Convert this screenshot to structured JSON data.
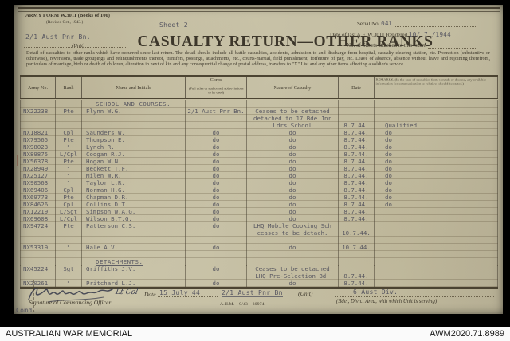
{
  "form": {
    "form_number": "ARMY FORM W.3011 (Books of 100)",
    "revised": "(Revised Oct., 1943.)",
    "sheet": "Sheet 2",
    "unit_value": "2/1 Aust Pnr Bn.",
    "unit_label": "(Unit)",
    "title": "CASUALTY RETURN—OTHER RANKS",
    "serial_label": "Serial No.",
    "serial_value": "041",
    "date_last_label": "Date of last A.F. W.3011 Rendered",
    "date_last_value": "10/ 7 /1944",
    "sheets_label": "No. of Sheets attached to this return",
    "intro": "Detail of casualties to other ranks which have occurred since last return.  The detail should include all battle casualties, accidents, admission to and discharge from hospital, casualty clearing station, etc.  Promotion (substantive or otherwise), reversions, trade groupings and relinquishments thereof, transfers, postings, attachments, etc., courts-martial, field punishment, forfeiture of pay, etc.  Leave of absence, absence without leave and rejoining therefrom, particulars of marriage, birth or death of children, alteration in next of kin and any consequential change of postal address, transfers to \"X\" List and any other items affecting a soldier's service."
  },
  "table": {
    "headers": {
      "army_no": "Army No.",
      "rank": "Rank",
      "name": "Name and Initials",
      "corps_line1": "Corps",
      "corps_line2": "(Full titles or authorised abbreviations to be used)",
      "nature": "Nature of Casualty",
      "date": "Date",
      "remarks": "REMARKS.  (In the case of casualties from wounds or disease, any available information for communication to relatives should be stated.)"
    },
    "rows": [
      {
        "type": "section",
        "label": "SCHOOL AND COURSES."
      },
      {
        "type": "entry",
        "army_no": "NX22238",
        "rank": "Pte",
        "name": "Flynn W.G.",
        "corps": "2/1 Aust Pnr Bn.",
        "nature": [
          "Ceases to be detached",
          "detached to 17 Bde Jnr",
          "Ldrs School"
        ],
        "date": "8.7.44.",
        "remarks": "Qualified"
      },
      {
        "type": "entry",
        "army_no": "NX18821",
        "rank": "Cpl",
        "name": "Saunders W.",
        "corps": "do",
        "nature": [
          "do"
        ],
        "date": "8.7.44.",
        "remarks": "do"
      },
      {
        "type": "entry",
        "army_no": "NX79565",
        "rank": "Pte",
        "name": "Thompson E.",
        "corps": "do",
        "nature": [
          "do"
        ],
        "date": "8.7.44.",
        "remarks": "do"
      },
      {
        "type": "entry",
        "army_no": "NX98023",
        "rank": "\"",
        "name": "Lynch R.",
        "corps": "do",
        "nature": [
          "do"
        ],
        "date": "8.7.44.",
        "remarks": "do"
      },
      {
        "type": "entry",
        "army_no": "NX89875",
        "rank": "L/Cpl",
        "name": "Coogan R.J.",
        "corps": "do",
        "nature": [
          "do"
        ],
        "date": "8.7.44.",
        "remarks": "do"
      },
      {
        "type": "entry",
        "army_no": "NX56378",
        "rank": "Pte",
        "name": "Hogan W.N.",
        "corps": "do",
        "nature": [
          "do"
        ],
        "date": "8.7.44.",
        "remarks": "do"
      },
      {
        "type": "entry",
        "army_no": "NX28949",
        "rank": "\"",
        "name": "Beckett T.F.",
        "corps": "do",
        "nature": [
          "do"
        ],
        "date": "8.7.44.",
        "remarks": "do"
      },
      {
        "type": "entry",
        "army_no": "NX25127",
        "rank": "\"",
        "name": "Milen W.R.",
        "corps": "do",
        "nature": [
          "do"
        ],
        "date": "8.7.44.",
        "remarks": "do"
      },
      {
        "type": "entry",
        "army_no": "NX90563",
        "rank": "\"",
        "name": "Taylor L.R.",
        "corps": "do",
        "nature": [
          "do"
        ],
        "date": "8.7.44.",
        "remarks": "do"
      },
      {
        "type": "entry",
        "army_no": "NX69406",
        "rank": "Cpl",
        "name": "Norman H.G.",
        "corps": "do",
        "nature": [
          "do"
        ],
        "date": "8.7.44.",
        "remarks": "do"
      },
      {
        "type": "entry",
        "army_no": "NX69773",
        "rank": "Pte",
        "name": "Chapman D.R.",
        "corps": "do",
        "nature": [
          "do"
        ],
        "date": "8.7.44.",
        "remarks": "do"
      },
      {
        "type": "entry",
        "army_no": "NX84626",
        "rank": "Cpl",
        "name": "Collins D.T.",
        "corps": "do",
        "nature": [
          "do"
        ],
        "date": "8.7.44.",
        "remarks": "do"
      },
      {
        "type": "entry",
        "army_no": "NX12219",
        "rank": "L/Sgt",
        "name": "Simpson W.A.G.",
        "corps": "do",
        "nature": [
          "do"
        ],
        "date": "8.7.44.",
        "remarks": ""
      },
      {
        "type": "entry",
        "army_no": "NX69608",
        "rank": "L/Cpl",
        "name": "Wilson B.T.G.",
        "corps": "do",
        "nature": [
          "do"
        ],
        "date": "8.7.44.",
        "remarks": ""
      },
      {
        "type": "entry",
        "army_no": "NX94724",
        "rank": "Pte",
        "name": "Patterson C.S.",
        "corps": "do",
        "nature": [
          "LHQ Mobile Cooking Sch",
          "ceases to be detach."
        ],
        "date": "10.7.44.",
        "remarks": ""
      },
      {
        "type": "spacer"
      },
      {
        "type": "entry",
        "army_no": "NX53319",
        "rank": "\"",
        "name": "Hale A.V.",
        "corps": "do",
        "nature": [
          "do"
        ],
        "date": "10.7.44.",
        "remarks": ""
      },
      {
        "type": "spacer"
      },
      {
        "type": "section",
        "label": "DETACHMENTS."
      },
      {
        "type": "entry",
        "army_no": "NX45224",
        "rank": "Sgt",
        "name": "Griffiths J.V.",
        "corps": "do",
        "nature": [
          "Ceases to be detached",
          "LHQ Pre-Selection Bd."
        ],
        "date": "8.7.44.",
        "remarks": ""
      },
      {
        "type": "entry",
        "army_no": "NX20261",
        "rank": "\"",
        "name": "Pritchard L.J.",
        "corps": "do",
        "nature": [
          "do"
        ],
        "date": "8.7.44.",
        "remarks": ""
      }
    ]
  },
  "footer_form": {
    "signature_rank": "Lt-Col",
    "date_label": "Date",
    "date_value": "15 July 44",
    "unit_value": "2/1 Aust Pnr Bn",
    "unit_label": "(Unit)",
    "div_value": "6 Aust Div.",
    "sig_caption": "Signature of Commanding Officer.",
    "print_code": "A.H.M.—9/43—30974",
    "bde_caption": "(Bde., Divn., Area, with which Unit is serving)",
    "comd": "Comd."
  },
  "awm_bar": {
    "left": "AUSTRALIAN WAR MEMORIAL",
    "right": "AWM2020.71.8989"
  }
}
